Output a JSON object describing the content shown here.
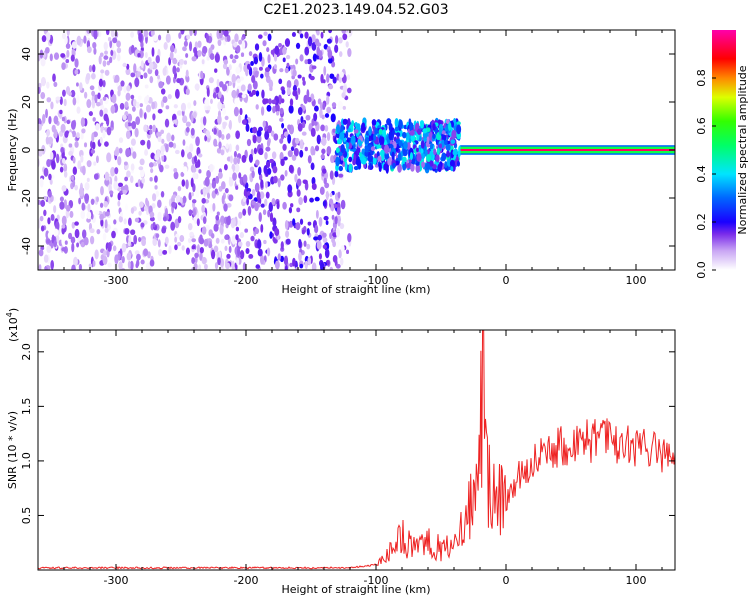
{
  "title": "C2E1.2023.149.04.52.G03",
  "chart_data": [
    {
      "type": "heatmap",
      "xlabel": "Height of straight line (km)",
      "ylabel": "Frequency (Hz)",
      "xlim": [
        -360,
        130
      ],
      "ylim": [
        -50,
        50
      ],
      "xticks": [
        -300,
        -200,
        -100,
        0,
        100
      ],
      "yticks": [
        -40,
        -20,
        0,
        20,
        40
      ],
      "colorbar": {
        "label": "Normalized spectral amplitude",
        "range": [
          0,
          1
        ],
        "ticks": [
          0.0,
          0.2,
          0.4,
          0.6,
          0.8
        ],
        "colors": [
          "#ffffff",
          "#b06cf0",
          "#6a00e8",
          "#0000ff",
          "#00ffff",
          "#00ff00",
          "#ffff00",
          "#ff0000",
          "#ff00aa"
        ]
      },
      "regions": [
        {
          "x": [
            -360,
            -120
          ],
          "f": [
            -50,
            50
          ],
          "amplitude": [
            0.0,
            0.15
          ]
        },
        {
          "x": [
            -130,
            -35
          ],
          "f": [
            -8,
            12
          ],
          "amplitude": [
            0.1,
            0.45
          ]
        },
        {
          "x": [
            -35,
            130
          ],
          "f": [
            -2,
            2
          ],
          "amplitude": [
            0.7,
            0.95
          ]
        }
      ]
    },
    {
      "type": "line",
      "xlabel": "Height of straight line (km)",
      "ylabel": "SNR (10 * v/v)",
      "scale_label": "(x10",
      "scale_exponent": "4",
      "scale_suffix": ")",
      "xlim": [
        -360,
        130
      ],
      "ylim": [
        0,
        2.2
      ],
      "xticks": [
        -300,
        -200,
        -100,
        0,
        100
      ],
      "yticks": [
        0.5,
        1.0,
        1.5,
        2.0
      ],
      "ytick_labels": [
        "0.5",
        "1.0",
        "1.5",
        "2.0"
      ],
      "line_color": "#ee2222",
      "series": [
        {
          "x": [
            -360,
            -200,
            -120,
            -100,
            -90,
            -80,
            -70,
            -60,
            -50,
            -40,
            -30,
            -25,
            -20,
            -18,
            -15,
            -10,
            -5,
            0,
            10,
            20,
            30,
            50,
            70,
            90,
            100,
            110,
            120,
            130
          ],
          "y": [
            0.02,
            0.02,
            0.02,
            0.05,
            0.15,
            0.3,
            0.2,
            0.25,
            0.2,
            0.2,
            0.45,
            0.7,
            0.9,
            2.2,
            0.8,
            0.85,
            0.7,
            0.6,
            0.85,
            1.0,
            1.1,
            1.18,
            1.2,
            1.15,
            1.1,
            1.12,
            1.08,
            1.07
          ]
        }
      ]
    }
  ]
}
